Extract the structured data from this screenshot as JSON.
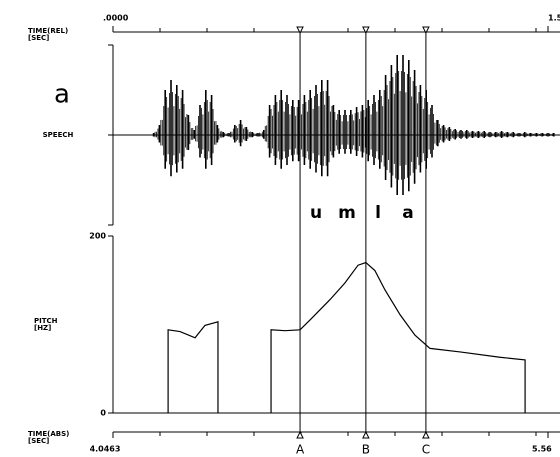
{
  "chart_data": {
    "type": "line",
    "panel_label": "a",
    "x_label_top": [
      "TIME(REL)",
      "[SEC]"
    ],
    "x_label_bottom": [
      "TIME(ABS)",
      "[SEC]"
    ],
    "speech_label": "SPEECH",
    "y_label": [
      "PITCH",
      "[HZ]"
    ],
    "xlim": [
      0,
      1.54
    ],
    "xticks": [
      {
        "value": 0,
        "label": ".0000"
      },
      {
        "value": 1.5,
        "label": "1.5"
      }
    ],
    "x2lim": [
      4.0463,
      5.6018
    ],
    "x2ticks": [
      4.0463,
      5.56
    ],
    "ylim": [
      0,
      200
    ],
    "yticks": [
      0,
      200
    ],
    "segments": [
      "u",
      "m",
      "l",
      "a"
    ],
    "markers": [
      {
        "label": "A",
        "x": 0.645
      },
      {
        "label": "B",
        "x": 0.872
      },
      {
        "label": "C",
        "x": 1.079
      }
    ],
    "speech_x": [
      0.14,
      0.16,
      0.18,
      0.2,
      0.22,
      0.24,
      0.26,
      0.28,
      0.3,
      0.32,
      0.34,
      0.36,
      0.38,
      0.4,
      0.42,
      0.44,
      0.46,
      0.48,
      0.5,
      0.52,
      0.54,
      0.56,
      0.58,
      0.6,
      0.62,
      0.64,
      0.66,
      0.68,
      0.7,
      0.72,
      0.74,
      0.76,
      0.78,
      0.8,
      0.82,
      0.84,
      0.86,
      0.88,
      0.9,
      0.92,
      0.94,
      0.96,
      0.98,
      1.0,
      1.02,
      1.04,
      1.06,
      1.08,
      1.1,
      1.12,
      1.14,
      1.16,
      1.18,
      1.2,
      1.22,
      1.24,
      1.26,
      1.28,
      1.3,
      1.32,
      1.34,
      1.36,
      1.38,
      1.4,
      1.42,
      1.44,
      1.46,
      1.48,
      1.5,
      1.52
    ],
    "speech_amplitude": [
      2,
      10,
      45,
      55,
      50,
      45,
      20,
      5,
      30,
      45,
      40,
      10,
      3,
      2,
      10,
      15,
      8,
      3,
      2,
      5,
      30,
      40,
      45,
      40,
      35,
      35,
      40,
      45,
      50,
      55,
      55,
      30,
      25,
      25,
      25,
      28,
      30,
      35,
      40,
      45,
      60,
      70,
      80,
      80,
      75,
      65,
      50,
      45,
      30,
      15,
      10,
      8,
      6,
      5,
      5,
      4,
      4,
      4,
      3,
      3,
      4,
      3,
      3,
      2,
      3,
      2,
      2,
      2,
      2,
      2
    ],
    "x": [
      0.19,
      0.231,
      0.283,
      0.317,
      0.362,
      null,
      0.545,
      0.593,
      0.645,
      0.679,
      0.748,
      0.8,
      0.845,
      0.872,
      0.903,
      0.938,
      0.99,
      1.041,
      1.093,
      1.197,
      1.334,
      1.421
    ],
    "values": [
      94,
      92,
      85,
      99,
      103,
      null,
      94,
      93,
      94,
      105,
      128,
      147,
      167,
      170,
      161,
      139,
      111,
      88,
      73,
      69,
      63,
      60
    ],
    "color": "#000000"
  }
}
